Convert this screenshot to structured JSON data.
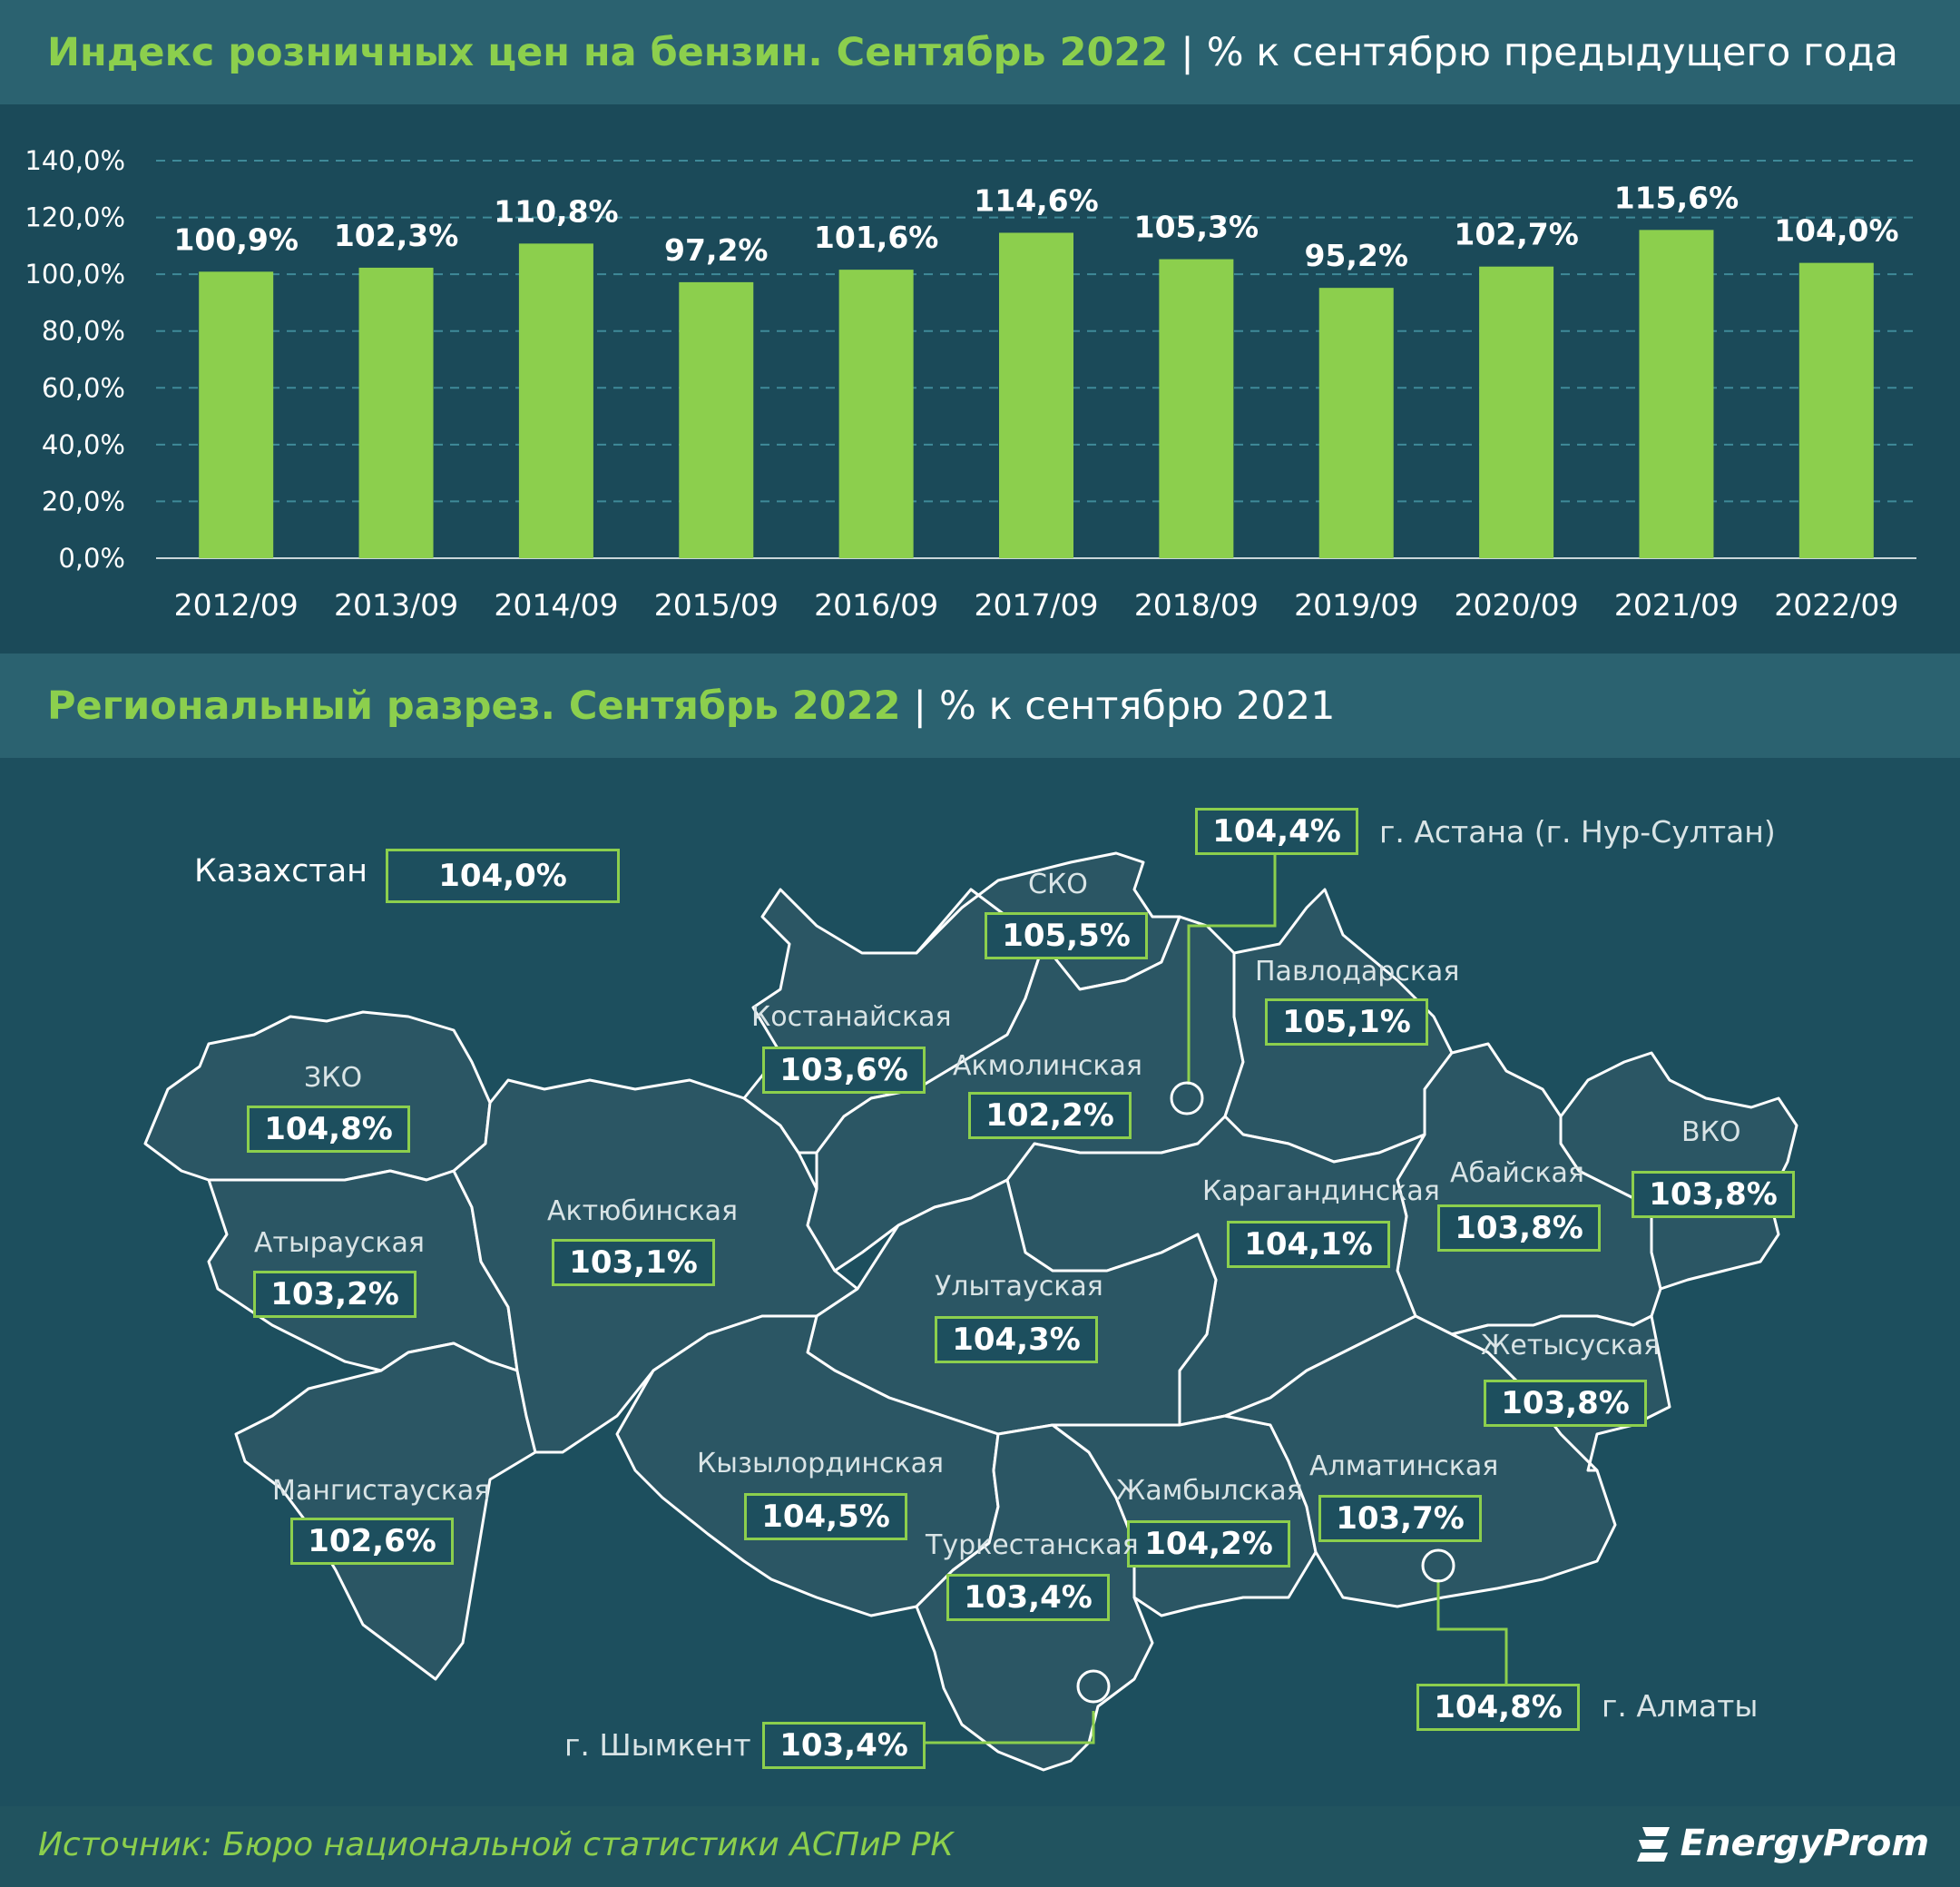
{
  "header": {
    "title_green": "Индекс розничных цен на бензин. Сентябрь 2022",
    "title_sep": "|",
    "title_white": "% к сентябрю предыдущего года"
  },
  "chart_data": {
    "type": "bar",
    "categories": [
      "2012/09",
      "2013/09",
      "2014/09",
      "2015/09",
      "2016/09",
      "2017/09",
      "2018/09",
      "2019/09",
      "2020/09",
      "2021/09",
      "2022/09"
    ],
    "values": [
      100.9,
      102.3,
      110.8,
      97.2,
      101.6,
      114.6,
      105.3,
      95.2,
      102.7,
      115.6,
      104.0
    ],
    "value_labels": [
      "100,9%",
      "102,3%",
      "110,8%",
      "97,2%",
      "101,6%",
      "114,6%",
      "105,3%",
      "95,2%",
      "102,7%",
      "115,6%",
      "104,0%"
    ],
    "yticks": [
      0,
      20,
      40,
      60,
      80,
      100,
      120,
      140
    ],
    "ytick_labels": [
      "0,0%",
      "20,0%",
      "40,0%",
      "60,0%",
      "80,0%",
      "100,0%",
      "120,0%",
      "140,0%"
    ],
    "ylim": [
      0,
      140
    ],
    "grid": true,
    "bar_color": "#8ccf4d"
  },
  "regional": {
    "title_green": "Региональный разрез. Сентябрь 2022",
    "title_sep": "|",
    "title_white": "% к сентябрю 2021",
    "kazakhstan": {
      "name": "Казахстан",
      "value": "104,0%"
    },
    "regions": [
      {
        "name": "г. Астана (г. Нур-Султан)",
        "value": "104,4%"
      },
      {
        "name": "СКО",
        "value": "105,5%"
      },
      {
        "name": "Павлодарская",
        "value": "105,1%"
      },
      {
        "name": "Костанайская",
        "value": "103,6%"
      },
      {
        "name": "Акмолинская",
        "value": "102,2%"
      },
      {
        "name": "ЗКО",
        "value": "104,8%"
      },
      {
        "name": "ВКО",
        "value": "103,8%"
      },
      {
        "name": "Абайская",
        "value": "103,8%"
      },
      {
        "name": "Карагандинская",
        "value": "104,1%"
      },
      {
        "name": "Актюбинская",
        "value": "103,1%"
      },
      {
        "name": "Атырауская",
        "value": "103,2%"
      },
      {
        "name": "Улытауская",
        "value": "104,3%"
      },
      {
        "name": "Жетысуская",
        "value": "103,8%"
      },
      {
        "name": "Кызылординская",
        "value": "104,5%"
      },
      {
        "name": "Жамбылская",
        "value": "104,2%"
      },
      {
        "name": "Алматинская",
        "value": "103,7%"
      },
      {
        "name": "Мангистауская",
        "value": "102,6%"
      },
      {
        "name": "Туркестанская",
        "value": "103,4%"
      },
      {
        "name": "г. Алматы",
        "value": "104,8%"
      },
      {
        "name": "г. Шымкент",
        "value": "103,4%"
      }
    ]
  },
  "footer": {
    "source": "Источник: Бюро национальной статистики АСПиР РК",
    "logo": "EnergyProm"
  }
}
